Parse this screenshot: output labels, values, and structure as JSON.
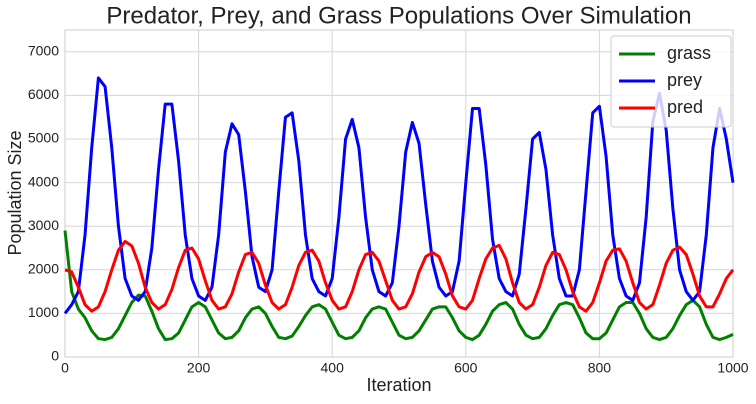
{
  "chart_data": {
    "type": "line",
    "title": "Predator, Prey, and Grass Populations Over Simulation",
    "x_label": "Iteration",
    "y_label": "Population Size",
    "x": [
      0,
      10,
      20,
      30,
      40,
      50,
      60,
      70,
      80,
      90,
      100,
      110,
      120,
      130,
      140,
      150,
      160,
      170,
      180,
      190,
      200,
      210,
      220,
      230,
      240,
      250,
      260,
      270,
      280,
      290,
      300,
      310,
      320,
      330,
      340,
      350,
      360,
      370,
      380,
      390,
      400,
      410,
      420,
      430,
      440,
      450,
      460,
      470,
      480,
      490,
      500,
      510,
      520,
      530,
      540,
      550,
      560,
      570,
      580,
      590,
      600,
      610,
      620,
      630,
      640,
      650,
      660,
      670,
      680,
      690,
      700,
      710,
      720,
      730,
      740,
      750,
      760,
      770,
      780,
      790,
      800,
      810,
      820,
      830,
      840,
      850,
      860,
      870,
      880,
      890,
      900,
      910,
      920,
      930,
      940,
      950,
      960,
      970,
      980,
      990,
      1000
    ],
    "series": [
      {
        "name": "grass",
        "color": "#008000",
        "values": [
          2900,
          1500,
          1100,
          900,
          600,
          420,
          400,
          450,
          650,
          950,
          1250,
          1420,
          1400,
          1050,
          650,
          400,
          420,
          550,
          850,
          1150,
          1250,
          1150,
          850,
          550,
          420,
          450,
          600,
          900,
          1100,
          1150,
          1000,
          700,
          450,
          420,
          480,
          700,
          950,
          1150,
          1200,
          1100,
          800,
          500,
          420,
          450,
          600,
          900,
          1100,
          1150,
          1100,
          800,
          500,
          420,
          450,
          600,
          850,
          1100,
          1150,
          1150,
          900,
          600,
          450,
          400,
          500,
          750,
          1050,
          1200,
          1250,
          1100,
          750,
          500,
          420,
          450,
          650,
          950,
          1200,
          1250,
          1200,
          900,
          550,
          420,
          420,
          550,
          850,
          1150,
          1250,
          1250,
          1000,
          650,
          450,
          400,
          450,
          650,
          950,
          1200,
          1300,
          1150,
          750,
          450,
          400,
          450,
          520
        ]
      },
      {
        "name": "prey",
        "color": "#0000ff",
        "values": [
          1000,
          1200,
          1500,
          2800,
          4800,
          6400,
          6200,
          4800,
          3000,
          1800,
          1400,
          1300,
          1500,
          2500,
          4300,
          5800,
          5800,
          4500,
          2800,
          1800,
          1400,
          1300,
          1600,
          2800,
          4700,
          5350,
          5100,
          3800,
          2300,
          1600,
          1500,
          2000,
          3800,
          5500,
          5600,
          4500,
          2800,
          1800,
          1500,
          1400,
          1800,
          3200,
          5000,
          5450,
          4800,
          3200,
          2000,
          1500,
          1400,
          1700,
          3000,
          4700,
          5380,
          4900,
          3500,
          2200,
          1600,
          1400,
          1500,
          2200,
          4000,
          5700,
          5700,
          4400,
          2700,
          1800,
          1500,
          1400,
          1900,
          3400,
          5000,
          5150,
          4300,
          2800,
          1800,
          1400,
          1400,
          2000,
          3800,
          5600,
          5750,
          4600,
          2800,
          1800,
          1400,
          1300,
          1700,
          3200,
          5400,
          6050,
          5200,
          3400,
          2000,
          1500,
          1300,
          1500,
          2800,
          4800,
          5700,
          5000,
          4000
        ]
      },
      {
        "name": "pred",
        "color": "#ff0000",
        "values": [
          2000,
          1950,
          1600,
          1200,
          1050,
          1150,
          1500,
          2000,
          2450,
          2650,
          2550,
          2150,
          1600,
          1250,
          1100,
          1200,
          1550,
          2050,
          2450,
          2500,
          2250,
          1750,
          1300,
          1100,
          1150,
          1450,
          1950,
          2350,
          2400,
          2150,
          1650,
          1250,
          1100,
          1200,
          1600,
          2100,
          2400,
          2450,
          2200,
          1700,
          1300,
          1100,
          1150,
          1500,
          2000,
          2350,
          2400,
          2200,
          1750,
          1300,
          1100,
          1150,
          1450,
          1950,
          2300,
          2400,
          2300,
          1900,
          1400,
          1150,
          1100,
          1300,
          1800,
          2250,
          2500,
          2560,
          2250,
          1700,
          1250,
          1100,
          1200,
          1600,
          2100,
          2400,
          2350,
          2000,
          1500,
          1150,
          1050,
          1250,
          1700,
          2200,
          2450,
          2480,
          2200,
          1700,
          1250,
          1100,
          1200,
          1650,
          2150,
          2450,
          2520,
          2350,
          1900,
          1400,
          1150,
          1150,
          1450,
          1800,
          2000
        ]
      }
    ],
    "xlim": [
      0,
      1000
    ],
    "xticks": [
      0,
      200,
      400,
      600,
      800,
      1000
    ],
    "ylim": [
      0,
      7500
    ],
    "yticks": [
      0,
      1000,
      2000,
      3000,
      4000,
      5000,
      6000,
      7000
    ],
    "grid": true,
    "legend": "upper right"
  }
}
